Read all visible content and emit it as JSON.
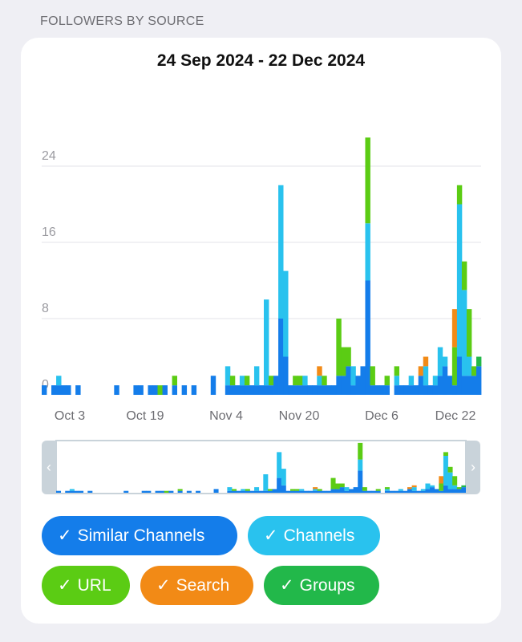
{
  "header": {
    "section_title": "FOLLOWERS BY SOURCE"
  },
  "chart_data": {
    "type": "bar",
    "stacked": true,
    "title": "24 Sep 2024 - 22 Dec 2024",
    "xlabel": "",
    "ylabel": "",
    "ylim": [
      0,
      27
    ],
    "yticks": [
      0,
      8,
      16,
      24
    ],
    "xtick_labels": [
      "Oct 3",
      "Oct 19",
      "Nov 4",
      "Nov 20",
      "Dec 6",
      "Dec 22"
    ],
    "grid": true,
    "legend_placement": "bottom",
    "x_start": "2024-09-24",
    "x_end": "2024-12-22",
    "series": [
      {
        "name": "Similar Channels",
        "color": "#147dea",
        "values": [
          1,
          0,
          1,
          1,
          1,
          1,
          0,
          1,
          0,
          0,
          0,
          0,
          0,
          0,
          0,
          1,
          0,
          0,
          0,
          1,
          1,
          0,
          1,
          1,
          0,
          1,
          0,
          1,
          0,
          1,
          0,
          1,
          0,
          0,
          0,
          2,
          0,
          0,
          1,
          1,
          1,
          1,
          1,
          1,
          1,
          1,
          1,
          1,
          2,
          8,
          4,
          1,
          1,
          1,
          1,
          1,
          1,
          1,
          1,
          1,
          1,
          2,
          2,
          3,
          1,
          2,
          3,
          12,
          1,
          1,
          1,
          1,
          0,
          1,
          1,
          1,
          1,
          1,
          2,
          1,
          1,
          1,
          2,
          3,
          2,
          1,
          4,
          2,
          2,
          2,
          3
        ]
      },
      {
        "name": "Channels",
        "color": "#29c2ee",
        "values": [
          0,
          0,
          0,
          1,
          0,
          0,
          0,
          0,
          0,
          0,
          0,
          0,
          0,
          0,
          0,
          0,
          0,
          0,
          0,
          0,
          0,
          0,
          0,
          0,
          0,
          0,
          0,
          0,
          0,
          0,
          0,
          0,
          0,
          0,
          0,
          0,
          0,
          0,
          2,
          0,
          0,
          1,
          0,
          0,
          2,
          0,
          9,
          0,
          0,
          14,
          9,
          0,
          0,
          0,
          1,
          0,
          0,
          1,
          0,
          0,
          0,
          0,
          0,
          0,
          2,
          0,
          0,
          6,
          0,
          0,
          0,
          0,
          0,
          1,
          0,
          0,
          1,
          0,
          0,
          2,
          0,
          1,
          3,
          1,
          0,
          0,
          16,
          9,
          2,
          0,
          0
        ]
      },
      {
        "name": "URL",
        "color": "#5bcc14",
        "values": [
          0,
          0,
          0,
          0,
          0,
          0,
          0,
          0,
          0,
          0,
          0,
          0,
          0,
          0,
          0,
          0,
          0,
          0,
          0,
          0,
          0,
          0,
          0,
          0,
          1,
          0,
          0,
          1,
          0,
          0,
          0,
          0,
          0,
          0,
          0,
          0,
          0,
          0,
          0,
          1,
          0,
          0,
          1,
          0,
          0,
          0,
          0,
          1,
          0,
          0,
          0,
          0,
          1,
          1,
          0,
          0,
          0,
          0,
          1,
          0,
          0,
          6,
          3,
          2,
          0,
          0,
          0,
          9,
          2,
          0,
          0,
          1,
          0,
          1,
          0,
          0,
          0,
          0,
          0,
          0,
          0,
          0,
          0,
          0,
          0,
          4,
          2,
          3,
          5,
          1,
          0
        ]
      },
      {
        "name": "Search",
        "color": "#f28a16",
        "values": [
          0,
          0,
          0,
          0,
          0,
          0,
          0,
          0,
          0,
          0,
          0,
          0,
          0,
          0,
          0,
          0,
          0,
          0,
          0,
          0,
          0,
          0,
          0,
          0,
          0,
          0,
          0,
          0,
          0,
          0,
          0,
          0,
          0,
          0,
          0,
          0,
          0,
          0,
          0,
          0,
          0,
          0,
          0,
          0,
          0,
          0,
          0,
          0,
          0,
          0,
          0,
          0,
          0,
          0,
          0,
          0,
          0,
          1,
          0,
          0,
          0,
          0,
          0,
          0,
          0,
          0,
          0,
          0,
          0,
          0,
          0,
          0,
          0,
          0,
          0,
          0,
          0,
          0,
          1,
          1,
          0,
          0,
          0,
          0,
          0,
          4,
          0,
          0,
          0,
          0,
          0
        ]
      },
      {
        "name": "Groups",
        "color": "#22b84a",
        "values": [
          0,
          0,
          0,
          0,
          0,
          0,
          0,
          0,
          0,
          0,
          0,
          0,
          0,
          0,
          0,
          0,
          0,
          0,
          0,
          0,
          0,
          0,
          0,
          0,
          0,
          0,
          0,
          0,
          0,
          0,
          0,
          0,
          0,
          0,
          0,
          0,
          0,
          0,
          0,
          0,
          0,
          0,
          0,
          0,
          0,
          0,
          0,
          0,
          0,
          0,
          0,
          0,
          0,
          0,
          0,
          0,
          0,
          0,
          0,
          0,
          0,
          0,
          0,
          0,
          0,
          0,
          0,
          0,
          0,
          0,
          0,
          0,
          0,
          0,
          0,
          0,
          0,
          0,
          0,
          0,
          0,
          0,
          0,
          0,
          0,
          0,
          0,
          0,
          0,
          0,
          1
        ]
      }
    ]
  },
  "navigator": {
    "left_arrow": "‹",
    "right_arrow": "›"
  },
  "legend": [
    {
      "label": "Similar Channels",
      "check": "✓",
      "color": "#147dea"
    },
    {
      "label": "Channels",
      "check": "✓",
      "color": "#29c2ee"
    },
    {
      "label": "URL",
      "check": "✓",
      "color": "#5bcc14"
    },
    {
      "label": "Search",
      "check": "✓",
      "color": "#f28a16"
    },
    {
      "label": "Groups",
      "check": "✓",
      "color": "#22b84a"
    }
  ]
}
